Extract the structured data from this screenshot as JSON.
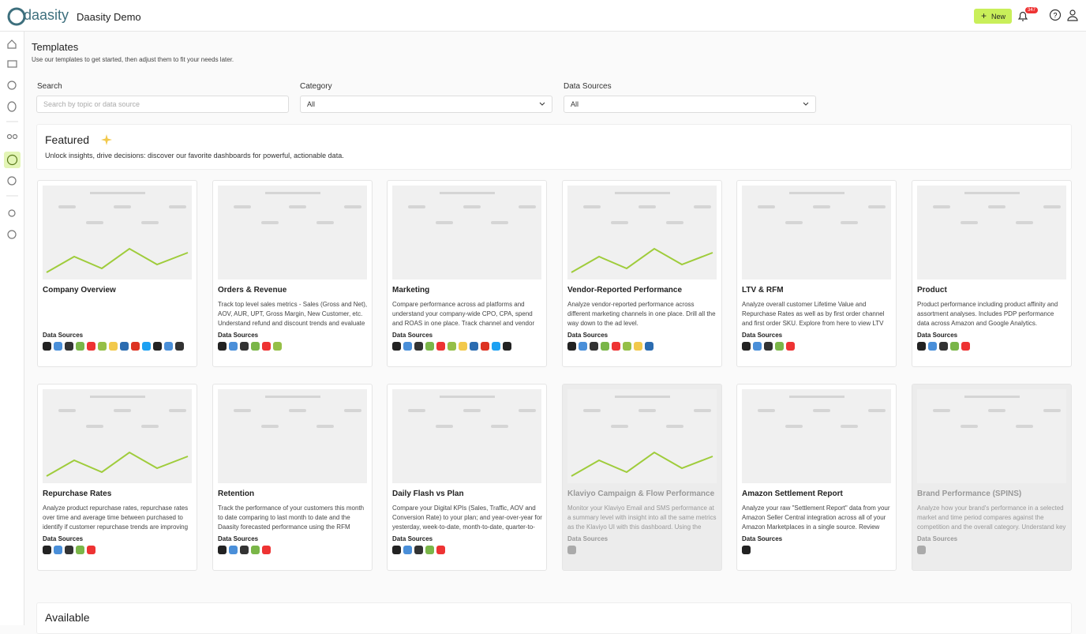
{
  "header": {
    "logo": "daasity",
    "title": "Daasity Demo",
    "new_button": "New",
    "badge": "347"
  },
  "page": {
    "title": "Templates",
    "subtitle": "Use our templates to get started, then adjust them to fit your needs later."
  },
  "filters": {
    "search_label": "Search",
    "search_placeholder": "Search by topic or data source",
    "category_label": "Category",
    "category_value": "All",
    "sources_label": "Data Sources",
    "sources_value": "All"
  },
  "featured": {
    "title": "Featured",
    "subtitle": "Unlock insights, drive decisions: discover our favorite dashboards for powerful, actionable data.",
    "cards": [
      {
        "title": "Company Overview",
        "sources_label": "Data Sources"
      },
      {
        "title": "Orders & Revenue",
        "description": "Track top level sales metrics - Sales (Gross and Net), AOV, AUR, UPT, Gross Margin, New Customer, etc. Understand refund and discount trends and evaluate",
        "sources_label": "Data Sources"
      },
      {
        "title": "Marketing",
        "description": "Compare performance across ad platforms and understand your company-wide CPO, CPA, spend and ROAS in one place. Track channel and vendor",
        "sources_label": "Data Sources"
      },
      {
        "title": "Vendor-Reported Performance",
        "description": "Analyze vendor-reported performance across different marketing channels in one place. Drill all the way down to the ad level.",
        "sources_label": "Data Sources"
      },
      {
        "title": "LTV & RFM",
        "description": "Analyze overall customer Lifetime Value and Repurchase Rates as well as by first order channel and first order SKU. Explore from here to view LTV by any",
        "sources_label": "Data Sources"
      },
      {
        "title": "Product",
        "description": "Product performance including product affinity and assortment analyses. Includes PDP performance data across Amazon and Google Analytics.",
        "sources_label": "Data Sources"
      },
      {
        "title": "Repurchase Rates",
        "description": "Analyze product repurchase rates, repurchase rates over time and average time between purchased to identify if customer repurchase trends are improving or",
        "sources_label": "Data Sources"
      },
      {
        "title": "Retention",
        "description": "Track the performance of your customers this month to date comparing to last month to date and the Daasity forecasted performance using the RFM segments you",
        "sources_label": "Data Sources"
      },
      {
        "title": "Daily Flash vs Plan",
        "description": "Compare your Digital KPIs (Sales, Traffic, AOV and Conversion Rate) to your plan; and year-over-year for yesterday, week-to-date, month-to-date, quarter-to-",
        "sources_label": "Data Sources"
      },
      {
        "title": "Klaviyo Campaign & Flow Performance",
        "description": "Monitor your Klaviyo Email and SMS performance at a summary level with insight into all the same metrics as the Klaviyo UI with this dashboard. Using the Klaviyo",
        "sources_label": "Data Sources",
        "disabled": true
      },
      {
        "title": "Amazon Settlement Report",
        "description": "Analyze your raw \"Settlement Report\" data from your Amazon Seller Central integration across all of your Amazon Marketplaces in a single source. Review",
        "sources_label": "Data Sources"
      },
      {
        "title": "Brand Performance (SPINS)",
        "description": "Analyze how your brand's performance in a selected market and time period compares against the competition and the overall category. Understand key",
        "sources_label": "Data Sources",
        "disabled": true
      }
    ]
  },
  "available": {
    "title": "Available"
  }
}
